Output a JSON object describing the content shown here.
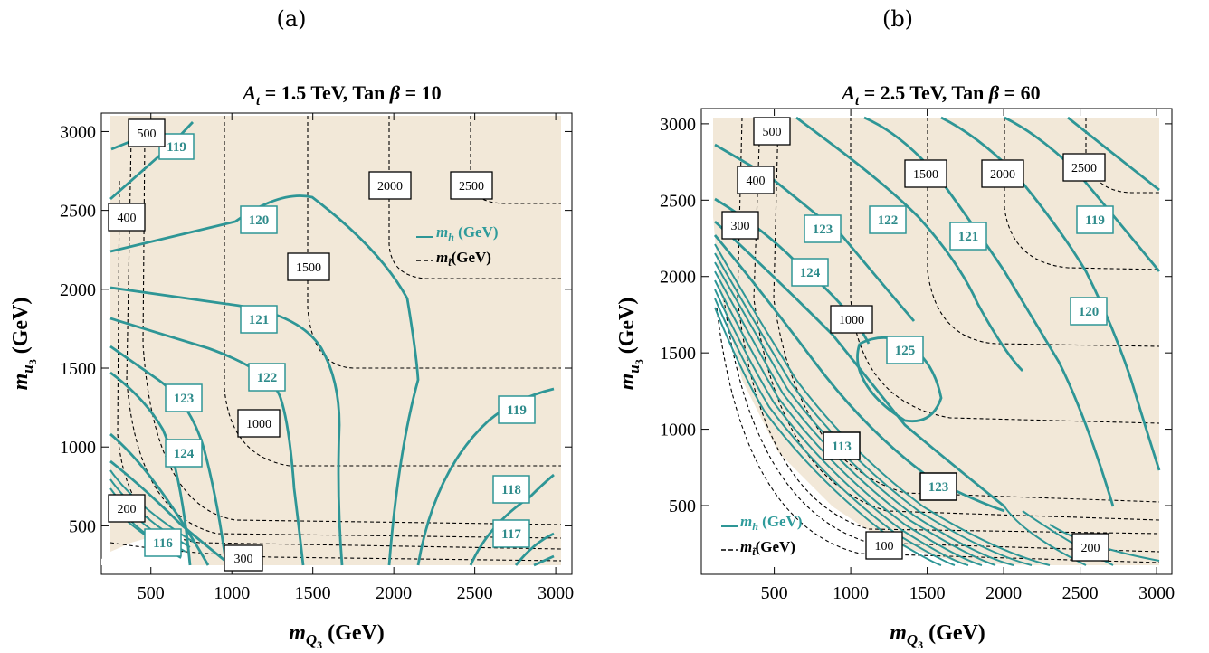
{
  "chart_data": [
    {
      "type": "contour",
      "panel_label": "(a)",
      "title": "A_t = 1.5 TeV, Tan β = 10",
      "title_parts": {
        "a": "A",
        "sub": "t",
        "rest": " = 1.5 TeV, Tan ",
        "beta": "β",
        "end": " = 10"
      },
      "xlabel": "m_Q3 (GeV)",
      "ylabel": "m_u3 (GeV)",
      "xlim": [
        250,
        3100
      ],
      "ylim": [
        250,
        3100
      ],
      "xticks": [
        500,
        1000,
        1500,
        2000,
        2500,
        3000
      ],
      "yticks": [
        500,
        1000,
        1500,
        2000,
        2500,
        3000
      ],
      "series": [
        {
          "name": "m_h (GeV)",
          "style": "solid teal",
          "contour_labels": [
            "119",
            "120",
            "121",
            "122",
            "123",
            "124",
            "116",
            "119",
            "118",
            "117"
          ]
        },
        {
          "name": "m_t̃ (GeV)",
          "style": "dashed black",
          "contour_labels": [
            "500",
            "400",
            "2000",
            "2500",
            "1500",
            "1000",
            "200",
            "300"
          ]
        }
      ],
      "legend": {
        "position": "top-right",
        "entries": [
          "m_h (GeV)",
          "m_t̃(GeV)"
        ]
      }
    },
    {
      "type": "contour",
      "panel_label": "(b)",
      "title": "A_t = 2.5 TeV, Tan β = 60",
      "title_parts": {
        "a": "A",
        "sub": "t",
        "rest": " = 2.5 TeV, Tan ",
        "beta": "β",
        "end": " = 60"
      },
      "xlabel": "m_Q3 (GeV)",
      "ylabel": "m_u3 (GeV)",
      "xlim": [
        100,
        3100
      ],
      "ylim": [
        50,
        3100
      ],
      "xticks": [
        500,
        1000,
        1500,
        2000,
        2500,
        3000
      ],
      "yticks": [
        500,
        1000,
        1500,
        2000,
        2500,
        3000
      ],
      "series": [
        {
          "name": "m_h (GeV)",
          "style": "solid teal",
          "contour_labels": [
            "123",
            "122",
            "121",
            "119",
            "124",
            "120",
            "125",
            "113",
            "123"
          ]
        },
        {
          "name": "m_t̃ (GeV)",
          "style": "dashed black",
          "contour_labels": [
            "500",
            "400",
            "300",
            "1500",
            "2000",
            "2500",
            "1000",
            "100",
            "200"
          ]
        }
      ],
      "legend": {
        "position": "bottom-left",
        "entries": [
          "m_h (GeV)",
          "m_t̃(GeV)"
        ]
      }
    }
  ],
  "axis_label_parts": {
    "x": {
      "m": "m",
      "sub": "Q",
      "subsub": "3",
      "unit": " (GeV)"
    },
    "y": {
      "m": "m",
      "sub": "u",
      "subsub": "3",
      "unit": " (GeV)"
    }
  },
  "legend_text": {
    "mh": "m",
    "mh_sub": "h",
    "mh_unit": " (GeV)",
    "mt": "m",
    "mt_sub": "t̃",
    "mt_unit": "(GeV)"
  },
  "colors": {
    "fill": "#f2e8d8",
    "teal": "#2e9696",
    "dash": "#000000"
  }
}
